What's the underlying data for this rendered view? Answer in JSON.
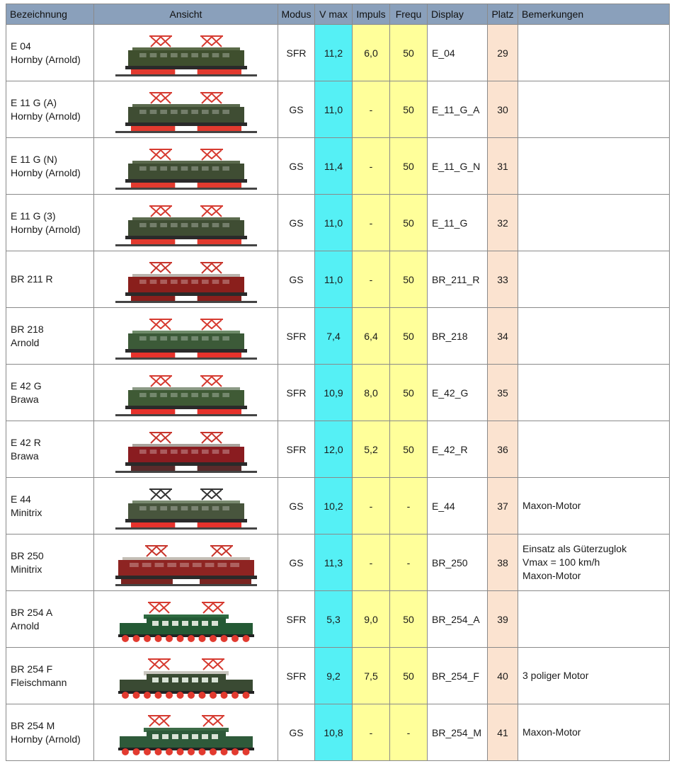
{
  "headers": {
    "bezeichnung": "Bezeichnung",
    "ansicht": "Ansicht",
    "modus": "Modus",
    "vmax": "V max",
    "impuls": "Impuls",
    "frequ": "Frequ",
    "display": "Display",
    "platz": "Platz",
    "bemerkungen": "Bemerkungen"
  },
  "rows": [
    {
      "name1": "E 04",
      "name2": "Hornby (Arnold)",
      "modus": "SFR",
      "vmax": "11,2",
      "impuls": "6,0",
      "frequ": "50",
      "display": "E_04",
      "platz": "29",
      "bem": [],
      "loco": {
        "body": "#3f4f2e",
        "roof": "#5a6a48",
        "frame": "#e23a2f",
        "panto": "#d63a30",
        "style": "box"
      }
    },
    {
      "name1": "E 11 G (A)",
      "name2": "Hornby (Arnold)",
      "modus": "GS",
      "vmax": "11,0",
      "impuls": "-",
      "frequ": "50",
      "display": "E_11_G_A",
      "platz": "30",
      "bem": [],
      "loco": {
        "body": "#3f4d33",
        "roof": "#5b6a4e",
        "frame": "#e23a2f",
        "panto": "#d63a30",
        "style": "box"
      }
    },
    {
      "name1": "E 11 G (N)",
      "name2": "Hornby (Arnold)",
      "modus": "GS",
      "vmax": "11,4",
      "impuls": "-",
      "frequ": "50",
      "display": "E_11_G_N",
      "platz": "31",
      "bem": [],
      "loco": {
        "body": "#3f4d33",
        "roof": "#5b6a4e",
        "frame": "#e23a2f",
        "panto": "#d63a30",
        "style": "box"
      }
    },
    {
      "name1": "E 11 G (3)",
      "name2": "Hornby (Arnold)",
      "modus": "GS",
      "vmax": "11,0",
      "impuls": "-",
      "frequ": "50",
      "display": "E_11_G",
      "platz": "32",
      "bem": [],
      "loco": {
        "body": "#3f4d33",
        "roof": "#5b6a4e",
        "frame": "#e23a2f",
        "panto": "#d63a30",
        "style": "box"
      }
    },
    {
      "name1": "BR 211 R",
      "name2": "",
      "modus": "GS",
      "vmax": "11,0",
      "impuls": "-",
      "frequ": "50",
      "display": "BR_211_R",
      "platz": "33",
      "bem": [],
      "loco": {
        "body": "#8a1f1c",
        "roof": "#b9b4ad",
        "frame": "#8a1f1c",
        "panto": "#c8352c",
        "style": "box"
      }
    },
    {
      "name1": "BR 218",
      "name2": "Arnold",
      "modus": "SFR",
      "vmax": "7,4",
      "impuls": "6,4",
      "frequ": "50",
      "display": "BR_218",
      "platz": "34",
      "bem": [],
      "loco": {
        "body": "#3c5a38",
        "roof": "#6f8c6a",
        "frame": "#e6322c",
        "panto": "#d63a30",
        "style": "box"
      }
    },
    {
      "name1": "E 42 G",
      "name2": "Brawa",
      "modus": "SFR",
      "vmax": "10,9",
      "impuls": "8,0",
      "frequ": "50",
      "display": "E_42_G",
      "platz": "35",
      "bem": [],
      "loco": {
        "body": "#3f5a35",
        "roof": "#8c9a86",
        "frame": "#e6322c",
        "panto": "#d63a30",
        "style": "box"
      }
    },
    {
      "name1": "E 42 R",
      "name2": "Brawa",
      "modus": "SFR",
      "vmax": "12,0",
      "impuls": "5,2",
      "frequ": "50",
      "display": "E_42_R",
      "platz": "36",
      "bem": [],
      "loco": {
        "body": "#8a1c20",
        "roof": "#a9a39c",
        "frame": "#5a2b2b",
        "panto": "#c8352c",
        "style": "box"
      }
    },
    {
      "name1": "E 44",
      "name2": "Minitrix",
      "modus": "GS",
      "vmax": "10,2",
      "impuls": "-",
      "frequ": "-",
      "display": "E_44",
      "platz": "37",
      "bem": [
        "Maxon-Motor"
      ],
      "loco": {
        "body": "#48553d",
        "roof": "#7a8a70",
        "frame": "#e6322c",
        "panto": "#333333",
        "style": "box"
      }
    },
    {
      "name1": "BR 250",
      "name2": "Minitrix",
      "modus": "GS",
      "vmax": "11,3",
      "impuls": "-",
      "frequ": "-",
      "display": "BR_250",
      "platz": "38",
      "bem": [
        "Einsatz als Güterzuglok",
        "Vmax = 100 km/h",
        "Maxon-Motor"
      ],
      "loco": {
        "body": "#8e2422",
        "roof": "#c4beb6",
        "frame": "#7a2421",
        "panto": "#c8352c",
        "style": "long"
      }
    },
    {
      "name1": "BR 254 A",
      "name2": "Arnold",
      "modus": "SFR",
      "vmax": "5,3",
      "impuls": "9,0",
      "frequ": "50",
      "display": "BR_254_A",
      "platz": "39",
      "bem": [],
      "loco": {
        "body": "#245a35",
        "roof": "#2e6a40",
        "frame": "#e23a2f",
        "panto": "#d63a30",
        "style": "croc"
      }
    },
    {
      "name1": "BR 254 F",
      "name2": "Fleischmann",
      "modus": "SFR",
      "vmax": "9,2",
      "impuls": "7,5",
      "frequ": "50",
      "display": "BR_254_F",
      "platz": "40",
      "bem": [
        "3 poliger Motor"
      ],
      "loco": {
        "body": "#3a4a33",
        "roof": "#c9c6bf",
        "frame": "#e23a2f",
        "panto": "#d63a30",
        "style": "croc"
      }
    },
    {
      "name1": "BR 254 M",
      "name2": "Hornby (Arnold)",
      "modus": "GS",
      "vmax": "10,8",
      "impuls": "-",
      "frequ": "-",
      "display": "BR_254_M",
      "platz": "41",
      "bem": [
        "Maxon-Motor"
      ],
      "loco": {
        "body": "#2e5a3a",
        "roof": "#3b6a46",
        "frame": "#e23a2f",
        "panto": "#d63a30",
        "style": "croc"
      }
    }
  ]
}
